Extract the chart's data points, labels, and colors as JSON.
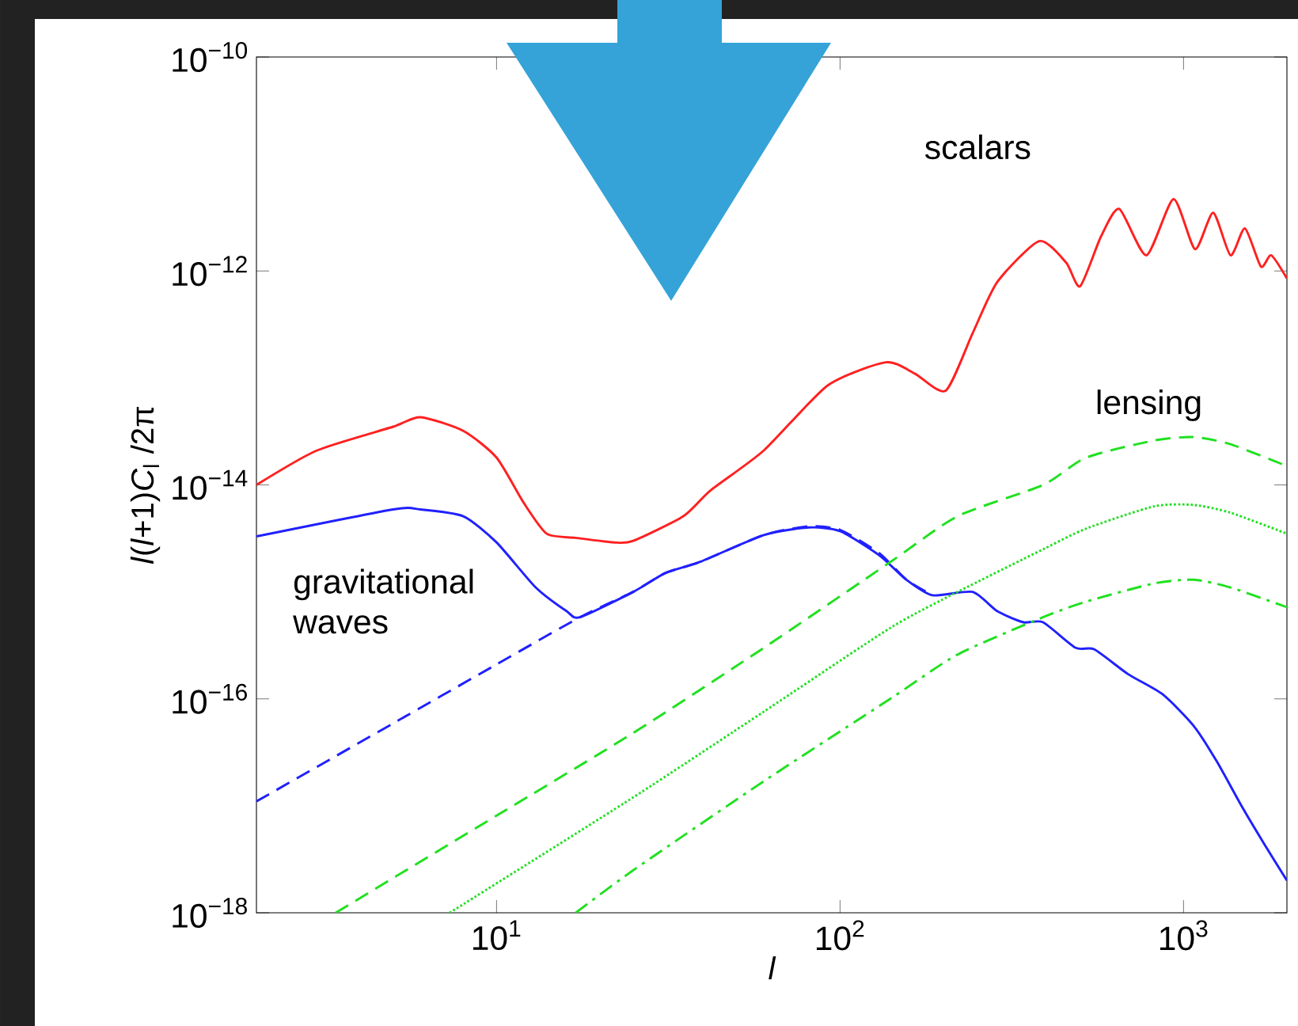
{
  "chart_data": {
    "type": "line",
    "xlabel": "l",
    "ylabel": "*l*(*l*+1)*C*$_{l}$ /2π",
    "log": "xy",
    "xlim": [
      2,
      2000
    ],
    "ylim": [
      1e-18,
      1e-10
    ],
    "xticks": [
      {
        "value": 10,
        "label": "10$^{1}$"
      },
      {
        "value": 100,
        "label": "10$^{2}$"
      },
      {
        "value": 1000,
        "label": "10$^{3}$"
      }
    ],
    "yticks": [
      {
        "value": 1e-18,
        "label": "10$^{−18}$"
      },
      {
        "value": 1e-16,
        "label": "10$^{−16}$"
      },
      {
        "value": 1e-14,
        "label": "10$^{−14}$"
      },
      {
        "value": 1e-12,
        "label": "10$^{−12}$"
      },
      {
        "value": 1e-10,
        "label": "10$^{−10}$"
      }
    ],
    "series": [
      {
        "color": "#ff2020",
        "line_style": "solid",
        "x": [
          2,
          3,
          5,
          6,
          8,
          10,
          12,
          14,
          17,
          22,
          25,
          35,
          42,
          60,
          92,
          136,
          165,
          203,
          243,
          287,
          380,
          455,
          500,
          575,
          650,
          780,
          935,
          1080,
          1220,
          1370,
          1510,
          1680,
          1800,
          2000
        ],
        "values": [
          1e-14,
          2.1e-14,
          3.5e-14,
          4.3e-14,
          3.2e-14,
          1.8e-14,
          6.8e-15,
          3.5e-15,
          3.2e-15,
          2.9e-15,
          3e-15,
          5.1e-15,
          8.9e-15,
          2.1e-14,
          8.5e-14,
          1.4e-13,
          1.1e-13,
          7.6e-14,
          2.6e-13,
          7.9e-13,
          1.9e-12,
          1.2e-12,
          7.2e-13,
          2.1e-12,
          3.8e-12,
          1.4e-12,
          4.7e-12,
          1.6e-12,
          3.5e-12,
          1.4e-12,
          2.5e-12,
          1.1e-12,
          1.4e-12,
          8.5e-13
        ]
      },
      {
        "color": "#2020ff",
        "line_style": "dashed",
        "x": [
          2,
          5,
          10,
          17.5,
          25,
          31,
          39,
          60,
          81,
          100,
          130,
          156,
          186
        ],
        "values": [
          1.1e-17,
          5.9e-17,
          2.1e-16,
          5.8e-16,
          1e-15,
          1.5e-15,
          1.9e-15,
          3.4e-15,
          4.1e-15,
          3.8e-15,
          2.3e-15,
          1.3e-15,
          9.3e-16
        ]
      },
      {
        "color": "#2020ff",
        "line_style": "solid",
        "x": [
          2,
          5,
          6,
          8,
          10,
          13,
          16,
          17.5,
          25,
          31,
          39,
          60,
          81,
          100,
          130,
          156,
          186,
          243,
          287,
          342,
          390,
          485,
          550,
          690,
          870,
          1070,
          1250,
          1480,
          1710,
          2000
        ],
        "values": [
          3.3e-15,
          5.9e-15,
          5.9e-15,
          5.1e-15,
          2.9e-15,
          1.1e-15,
          6.6e-16,
          5.8e-16,
          1e-15,
          1.5e-15,
          1.9e-15,
          3.4e-15,
          4e-15,
          3.7e-15,
          2.2e-15,
          1.3e-15,
          9.3e-16,
          1e-15,
          6.6e-16,
          5.2e-16,
          5.2e-16,
          3e-16,
          2.9e-16,
          1.7e-16,
          1.1e-16,
          5.6e-17,
          2.6e-17,
          9.8e-18,
          4.5e-18,
          2e-18
        ]
      },
      {
        "color": "#20e020",
        "line_style": "dashed",
        "x": [
          3.4,
          10,
          25,
          60,
          140,
          220,
          390,
          520,
          820,
          1070,
          1370,
          2000
        ],
        "values": [
          1e-18,
          8.1e-18,
          4.8e-17,
          3e-16,
          1.9e-15,
          5.1e-15,
          1e-14,
          1.8e-14,
          2.6e-14,
          2.8e-14,
          2.4e-14,
          1.5e-14
        ]
      },
      {
        "color": "#20e020",
        "line_style": "dotted",
        "x": [
          7.3,
          25,
          60,
          140,
          220,
          390,
          520,
          820,
          1070,
          1370,
          2000
        ],
        "values": [
          1e-18,
          1.2e-17,
          7.6e-17,
          4.6e-16,
          1e-15,
          2.5e-15,
          3.9e-15,
          6.3e-15,
          6.5e-15,
          5.5e-15,
          3.5e-15
        ]
      },
      {
        "color": "#20e020",
        "line_style": "dashdot",
        "x": [
          17,
          25,
          60,
          140,
          220,
          390,
          520,
          820,
          1070,
          1370,
          2000
        ],
        "values": [
          1e-18,
          2.5e-18,
          1.7e-17,
          1e-16,
          2.6e-16,
          5.8e-16,
          8.1e-16,
          1.2e-15,
          1.3e-15,
          1.1e-15,
          7.2e-16
        ]
      }
    ],
    "annotations": [
      "scalars",
      "lensing",
      "gravitational waves"
    ]
  }
}
